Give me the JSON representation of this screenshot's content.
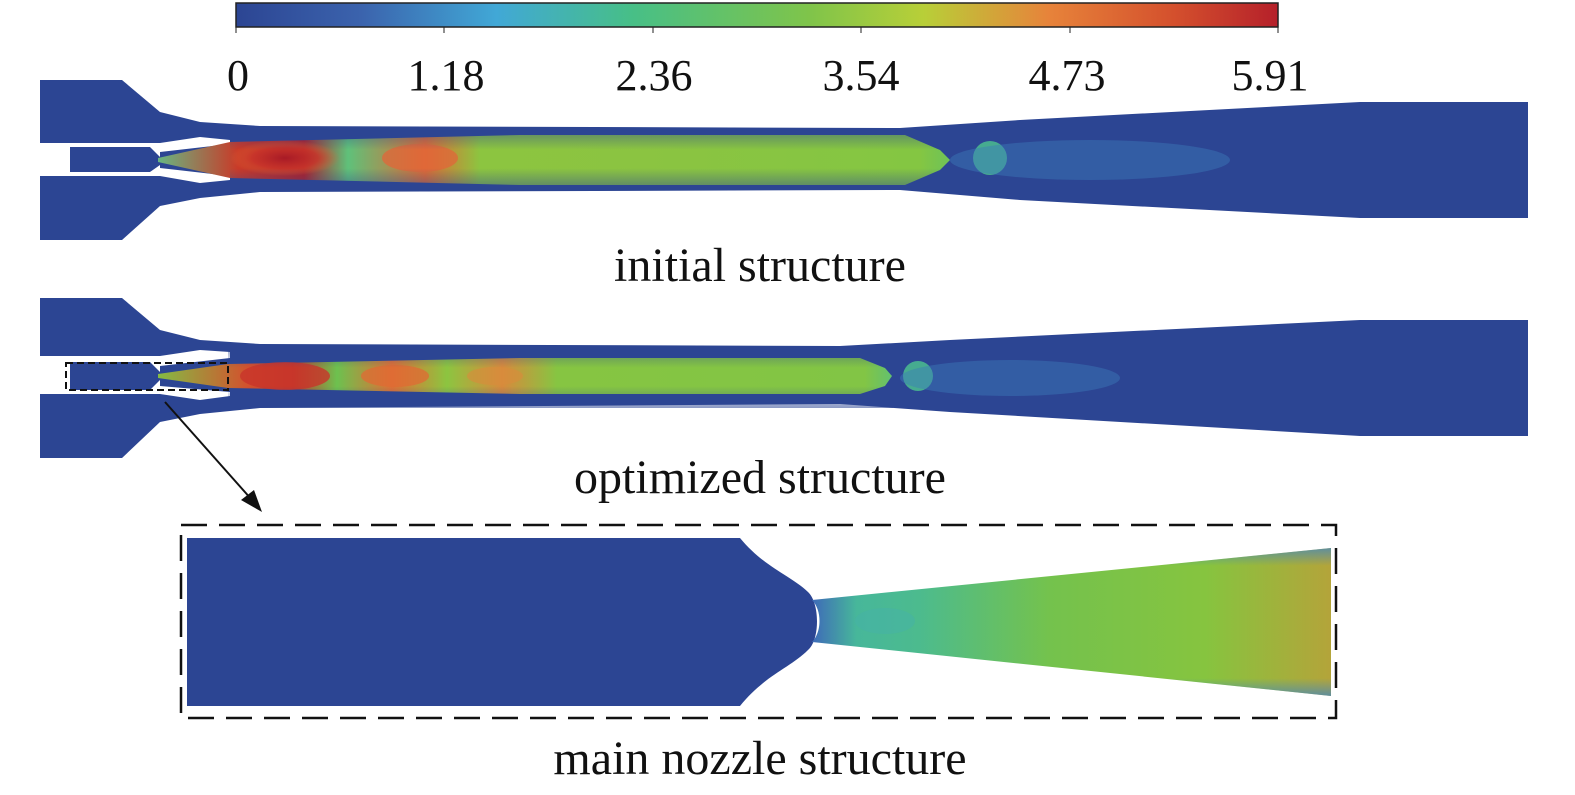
{
  "colorbar": {
    "ticks": [
      "0",
      "1.18",
      "2.36",
      "3.54",
      "4.73",
      "5.91"
    ],
    "colors": [
      "#2c4593",
      "#41a8d6",
      "#47bf87",
      "#a6cd3b",
      "#e7833a",
      "#b5202a"
    ]
  },
  "captions": {
    "initial": "initial structure",
    "optimized": "optimized structure",
    "zoom": "main nozzle structure"
  },
  "colors": {
    "background_fluid": "#2c4593",
    "core_green": "#84c642",
    "hot_red": "#b5202a"
  }
}
